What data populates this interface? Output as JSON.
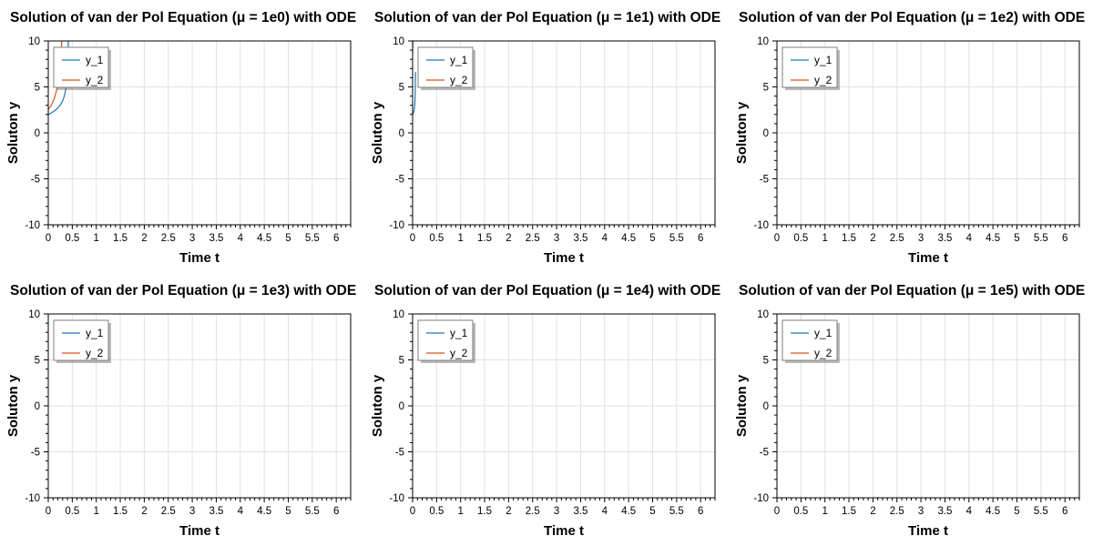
{
  "colors": {
    "y_1": "#1f77b4",
    "y_2": "#d95319"
  },
  "chart_data": [
    {
      "type": "line",
      "title": "Solution of van der Pol Equation (μ = 1e0) with ODE",
      "xlabel": "Time t",
      "ylabel": "Soluton y",
      "mu": 1,
      "xlim": [
        0,
        6.3
      ],
      "ylim": [
        -10,
        10
      ],
      "xticks": [
        "0",
        "0.5",
        "1",
        "1.5",
        "2",
        "2.5",
        "3",
        "3.5",
        "4",
        "4.5",
        "5",
        "5.5",
        "6"
      ],
      "yticks": [
        "10",
        "5",
        "0",
        "-5",
        "-10"
      ],
      "grid": true,
      "legend_location": "top-left",
      "series": [
        {
          "name": "y_1"
        },
        {
          "name": "y_2"
        }
      ]
    },
    {
      "type": "line",
      "title": "Solution of van der Pol Equation (μ = 1e1) with ODE",
      "xlabel": "Time t",
      "ylabel": "Soluton y",
      "mu": 10,
      "xlim": [
        0,
        6.3
      ],
      "ylim": [
        -10,
        10
      ],
      "xticks": [
        "0",
        "0.5",
        "1",
        "1.5",
        "2",
        "2.5",
        "3",
        "3.5",
        "4",
        "4.5",
        "5",
        "5.5",
        "6"
      ],
      "yticks": [
        "10",
        "5",
        "0",
        "-5",
        "-10"
      ],
      "grid": true,
      "legend_location": "top-left",
      "series": [
        {
          "name": "y_1"
        },
        {
          "name": "y_2"
        }
      ]
    },
    {
      "type": "line",
      "title": "Solution of van der Pol Equation (μ = 1e2) with ODE",
      "xlabel": "Time t",
      "ylabel": "Soluton y",
      "mu": 100,
      "xlim": [
        0,
        6.3
      ],
      "ylim": [
        -10,
        10
      ],
      "xticks": [
        "0",
        "0.5",
        "1",
        "1.5",
        "2",
        "2.5",
        "3",
        "3.5",
        "4",
        "4.5",
        "5",
        "5.5",
        "6"
      ],
      "yticks": [
        "10",
        "5",
        "0",
        "-5",
        "-10"
      ],
      "grid": true,
      "legend_location": "top-left",
      "series": [
        {
          "name": "y_1"
        },
        {
          "name": "y_2"
        }
      ]
    },
    {
      "type": "line",
      "title": "Solution of van der Pol Equation (μ = 1e3) with ODE",
      "xlabel": "Time t",
      "ylabel": "Soluton y",
      "mu": 1000,
      "xlim": [
        0,
        6.3
      ],
      "ylim": [
        -10,
        10
      ],
      "xticks": [
        "0",
        "0.5",
        "1",
        "1.5",
        "2",
        "2.5",
        "3",
        "3.5",
        "4",
        "4.5",
        "5",
        "5.5",
        "6"
      ],
      "yticks": [
        "10",
        "5",
        "0",
        "-5",
        "-10"
      ],
      "grid": true,
      "legend_location": "top-left",
      "series": [
        {
          "name": "y_1"
        },
        {
          "name": "y_2"
        }
      ]
    },
    {
      "type": "line",
      "title": "Solution of van der Pol Equation (μ = 1e4) with ODE",
      "xlabel": "Time t",
      "ylabel": "Soluton y",
      "mu": 10000,
      "xlim": [
        0,
        6.3
      ],
      "ylim": [
        -10,
        10
      ],
      "xticks": [
        "0",
        "0.5",
        "1",
        "1.5",
        "2",
        "2.5",
        "3",
        "3.5",
        "4",
        "4.5",
        "5",
        "5.5",
        "6"
      ],
      "yticks": [
        "10",
        "5",
        "0",
        "-5",
        "-10"
      ],
      "grid": true,
      "legend_location": "top-left",
      "series": [
        {
          "name": "y_1"
        },
        {
          "name": "y_2"
        }
      ]
    },
    {
      "type": "line",
      "title": "Solution of van der Pol Equation (μ = 1e5) with ODE",
      "xlabel": "Time t",
      "ylabel": "Soluton y",
      "mu": 100000,
      "xlim": [
        0,
        6.3
      ],
      "ylim": [
        -10,
        10
      ],
      "xticks": [
        "0",
        "0.5",
        "1",
        "1.5",
        "2",
        "2.5",
        "3",
        "3.5",
        "4",
        "4.5",
        "5",
        "5.5",
        "6"
      ],
      "yticks": [
        "10",
        "5",
        "0",
        "-5",
        "-10"
      ],
      "grid": true,
      "legend_location": "top-left",
      "series": [
        {
          "name": "y_1"
        },
        {
          "name": "y_2"
        }
      ]
    }
  ]
}
